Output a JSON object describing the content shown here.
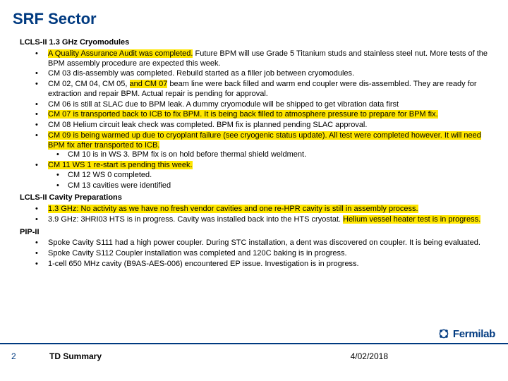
{
  "colors": {
    "accent": "#003a80",
    "highlight": "#ffe600",
    "text": "#000000",
    "background": "#ffffff"
  },
  "title": "SRF Sector",
  "sections": [
    {
      "heading": "LCLS-II 1.3 GHz Cryomodules",
      "items": [
        {
          "segments": [
            {
              "text": "A Quality Assurance Audit was completed.",
              "hl": true
            },
            {
              "text": " Future BPM will use Grade 5 Titanium studs and stainless steel nut. More tests of the BPM assembly procedure are expected this week.",
              "hl": false
            }
          ]
        },
        {
          "segments": [
            {
              "text": "CM 03 dis-assembly was completed. Rebuild started as a filler job between cryomodules.",
              "hl": false
            }
          ]
        },
        {
          "segments": [
            {
              "text": "CM 02, CM 04, CM 05, ",
              "hl": false
            },
            {
              "text": "and CM 07",
              "hl": true
            },
            {
              "text": " beam line were back filled and warm end coupler were dis-assembled. They are ready for extraction and repair BPM. Actual repair is pending for approval.",
              "hl": false
            }
          ]
        },
        {
          "segments": [
            {
              "text": "CM 06 is still at SLAC due to BPM leak. A dummy cryomodule will be shipped to get vibration data first",
              "hl": false
            }
          ]
        },
        {
          "segments": [
            {
              "text": "CM 07 is transported back to ICB to fix BPM. It is being back filled to atmosphere pressure to prepare for BPM fix.",
              "hl": true
            }
          ]
        },
        {
          "segments": [
            {
              "text": "CM 08 Helium circuit leak check was completed. BPM fix is planned pending SLAC approval.",
              "hl": false
            }
          ]
        },
        {
          "segments": [
            {
              "text": "CM 09 is being warmed up due to cryoplant failure (see cryogenic status update). All test were completed however. It will need BPM fix after transported to ICB.",
              "hl": true
            }
          ]
        },
        {
          "segments": [
            {
              "text": "CM 10 is in WS 3. BPM fix is on hold before thermal shield weldment.",
              "hl": false
            }
          ],
          "indent": 2
        },
        {
          "segments": [
            {
              "text": "CM 11 WS 1 re-start is pending this week.",
              "hl": true
            }
          ]
        },
        {
          "segments": [
            {
              "text": "CM 12 WS 0 completed.",
              "hl": false
            }
          ],
          "indent": 2
        },
        {
          "segments": [
            {
              "text": "CM 13 cavities were identified",
              "hl": false
            }
          ],
          "indent": 2
        }
      ]
    },
    {
      "heading": "LCLS-II Cavity Preparations",
      "items": [
        {
          "segments": [
            {
              "text": "1.3 GHz: No activity as we have no fresh vendor cavities and one re-HPR cavity is still in assembly process.",
              "hl": true
            }
          ]
        },
        {
          "segments": [
            {
              "text": "3.9 GHz: 3HRI03 HTS is in progress. Cavity was installed back into the HTS cryostat. ",
              "hl": false
            },
            {
              "text": "Helium vessel heater test is in progress.",
              "hl": true
            }
          ]
        }
      ]
    },
    {
      "heading": "PIP-II",
      "items": [
        {
          "segments": [
            {
              "text": "Spoke Cavity S111 had a high power coupler. During STC installation, a dent was discovered on coupler. It is being evaluated.",
              "hl": false
            }
          ]
        },
        {
          "segments": [
            {
              "text": "Spoke Cavity S112 Coupler installation was completed and 120C baking is in progress.",
              "hl": false
            }
          ]
        },
        {
          "segments": [
            {
              "text": "1-cell 650 MHz cavity (B9AS-AES-006) encountered EP issue. Investigation is in progress.",
              "hl": false
            }
          ]
        }
      ]
    }
  ],
  "footer": {
    "page": "2",
    "title": "TD Summary",
    "date": "4/02/2018",
    "brand": "Fermilab"
  }
}
